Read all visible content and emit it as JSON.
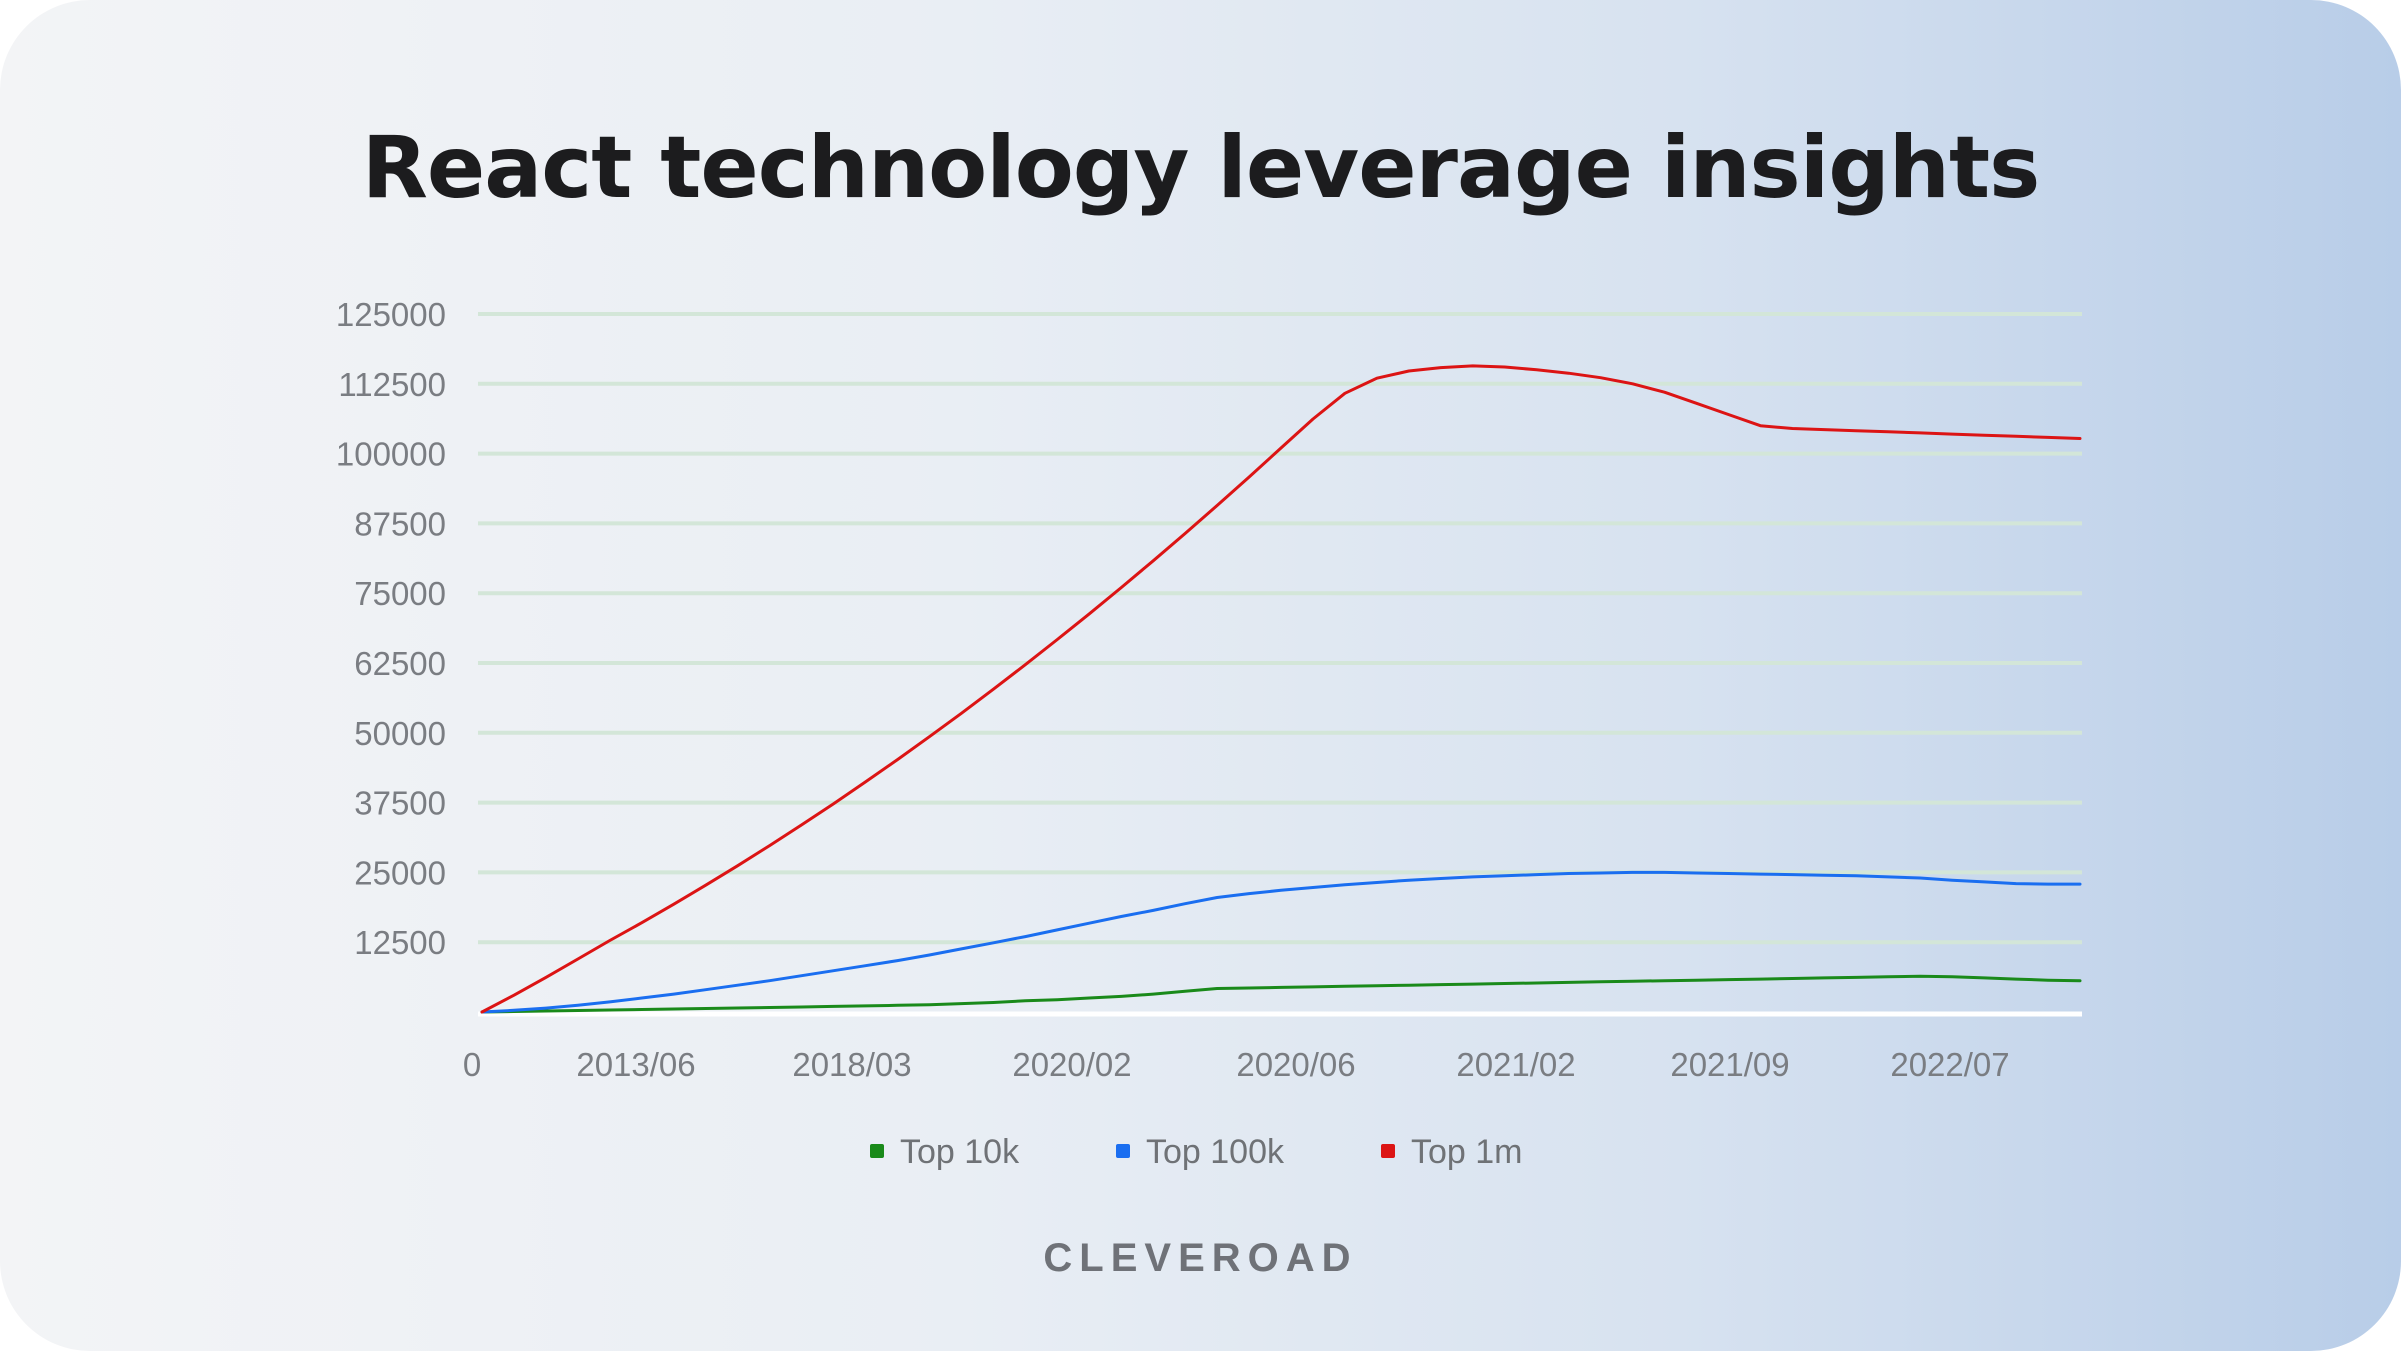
{
  "title": "React technology leverage insights",
  "brand": "CLEVEROAD",
  "colors": {
    "gridline": "#d3e6d8",
    "baseline": "#ffffff",
    "tick_text": "#7a7d82",
    "legend_text": "#6f7276"
  },
  "chart_data": {
    "type": "line",
    "title": "React technology leverage insights",
    "xlabel": "",
    "ylabel": "",
    "ylim": [
      0,
      125000
    ],
    "yticks": [
      "125000",
      "112500",
      "100000",
      "87500",
      "75000",
      "62500",
      "50000",
      "37500",
      "25000",
      "12500"
    ],
    "xticks": [
      "0",
      "2013/06",
      "2018/03",
      "2020/02",
      "2020/06",
      "2021/02",
      "2021/09",
      "2022/07"
    ],
    "grid": true,
    "legend": "bottom-center",
    "x_index": [
      0,
      1,
      2,
      3,
      4,
      5,
      6,
      7,
      8,
      9,
      10,
      11,
      12,
      13,
      14,
      15,
      16,
      17,
      18,
      19,
      20,
      21,
      22,
      23,
      24,
      25,
      26,
      27,
      28,
      29,
      30,
      31,
      32,
      33,
      34,
      35,
      36,
      37,
      38,
      39,
      40,
      41,
      42,
      43,
      44,
      45,
      46,
      47,
      48,
      49,
      50
    ],
    "series": [
      {
        "name": "Top 10k",
        "color": "#1a8a1a",
        "values": [
          0,
          90,
          180,
          270,
          360,
          450,
          540,
          630,
          720,
          810,
          900,
          1000,
          1100,
          1200,
          1300,
          1500,
          1700,
          2000,
          2200,
          2500,
          2800,
          3200,
          3700,
          4200,
          4300,
          4400,
          4500,
          4600,
          4700,
          4800,
          4900,
          5000,
          5100,
          5200,
          5300,
          5400,
          5500,
          5600,
          5700,
          5800,
          5900,
          6000,
          6100,
          6200,
          6300,
          6400,
          6300,
          6100,
          5900,
          5700,
          5600
        ]
      },
      {
        "name": "Top 100k",
        "color": "#1a6ef0",
        "values": [
          0,
          300,
          700,
          1200,
          1800,
          2500,
          3200,
          4000,
          4800,
          5600,
          6500,
          7400,
          8300,
          9200,
          10200,
          11300,
          12400,
          13500,
          14700,
          15900,
          17100,
          18200,
          19400,
          20500,
          21200,
          21800,
          22300,
          22800,
          23200,
          23600,
          23900,
          24200,
          24400,
          24600,
          24800,
          24900,
          25000,
          25000,
          24900,
          24800,
          24700,
          24600,
          24500,
          24400,
          24200,
          24000,
          23600,
          23300,
          23000,
          22900,
          22900
        ]
      },
      {
        "name": "Top 1m",
        "color": "#dc1414",
        "values": [
          0,
          3000,
          6200,
          9500,
          12800,
          16000,
          19300,
          22700,
          26200,
          29800,
          33500,
          37300,
          41200,
          45200,
          49300,
          53500,
          57800,
          62200,
          66700,
          71300,
          76000,
          80800,
          85700,
          90700,
          95800,
          101000,
          106200,
          110800,
          113500,
          114800,
          115400,
          115700,
          115500,
          115000,
          114400,
          113600,
          112500,
          111000,
          109000,
          107000,
          105000,
          104500,
          104300,
          104100,
          103900,
          103700,
          103500,
          103300,
          103100,
          102900,
          102700
        ]
      }
    ]
  }
}
